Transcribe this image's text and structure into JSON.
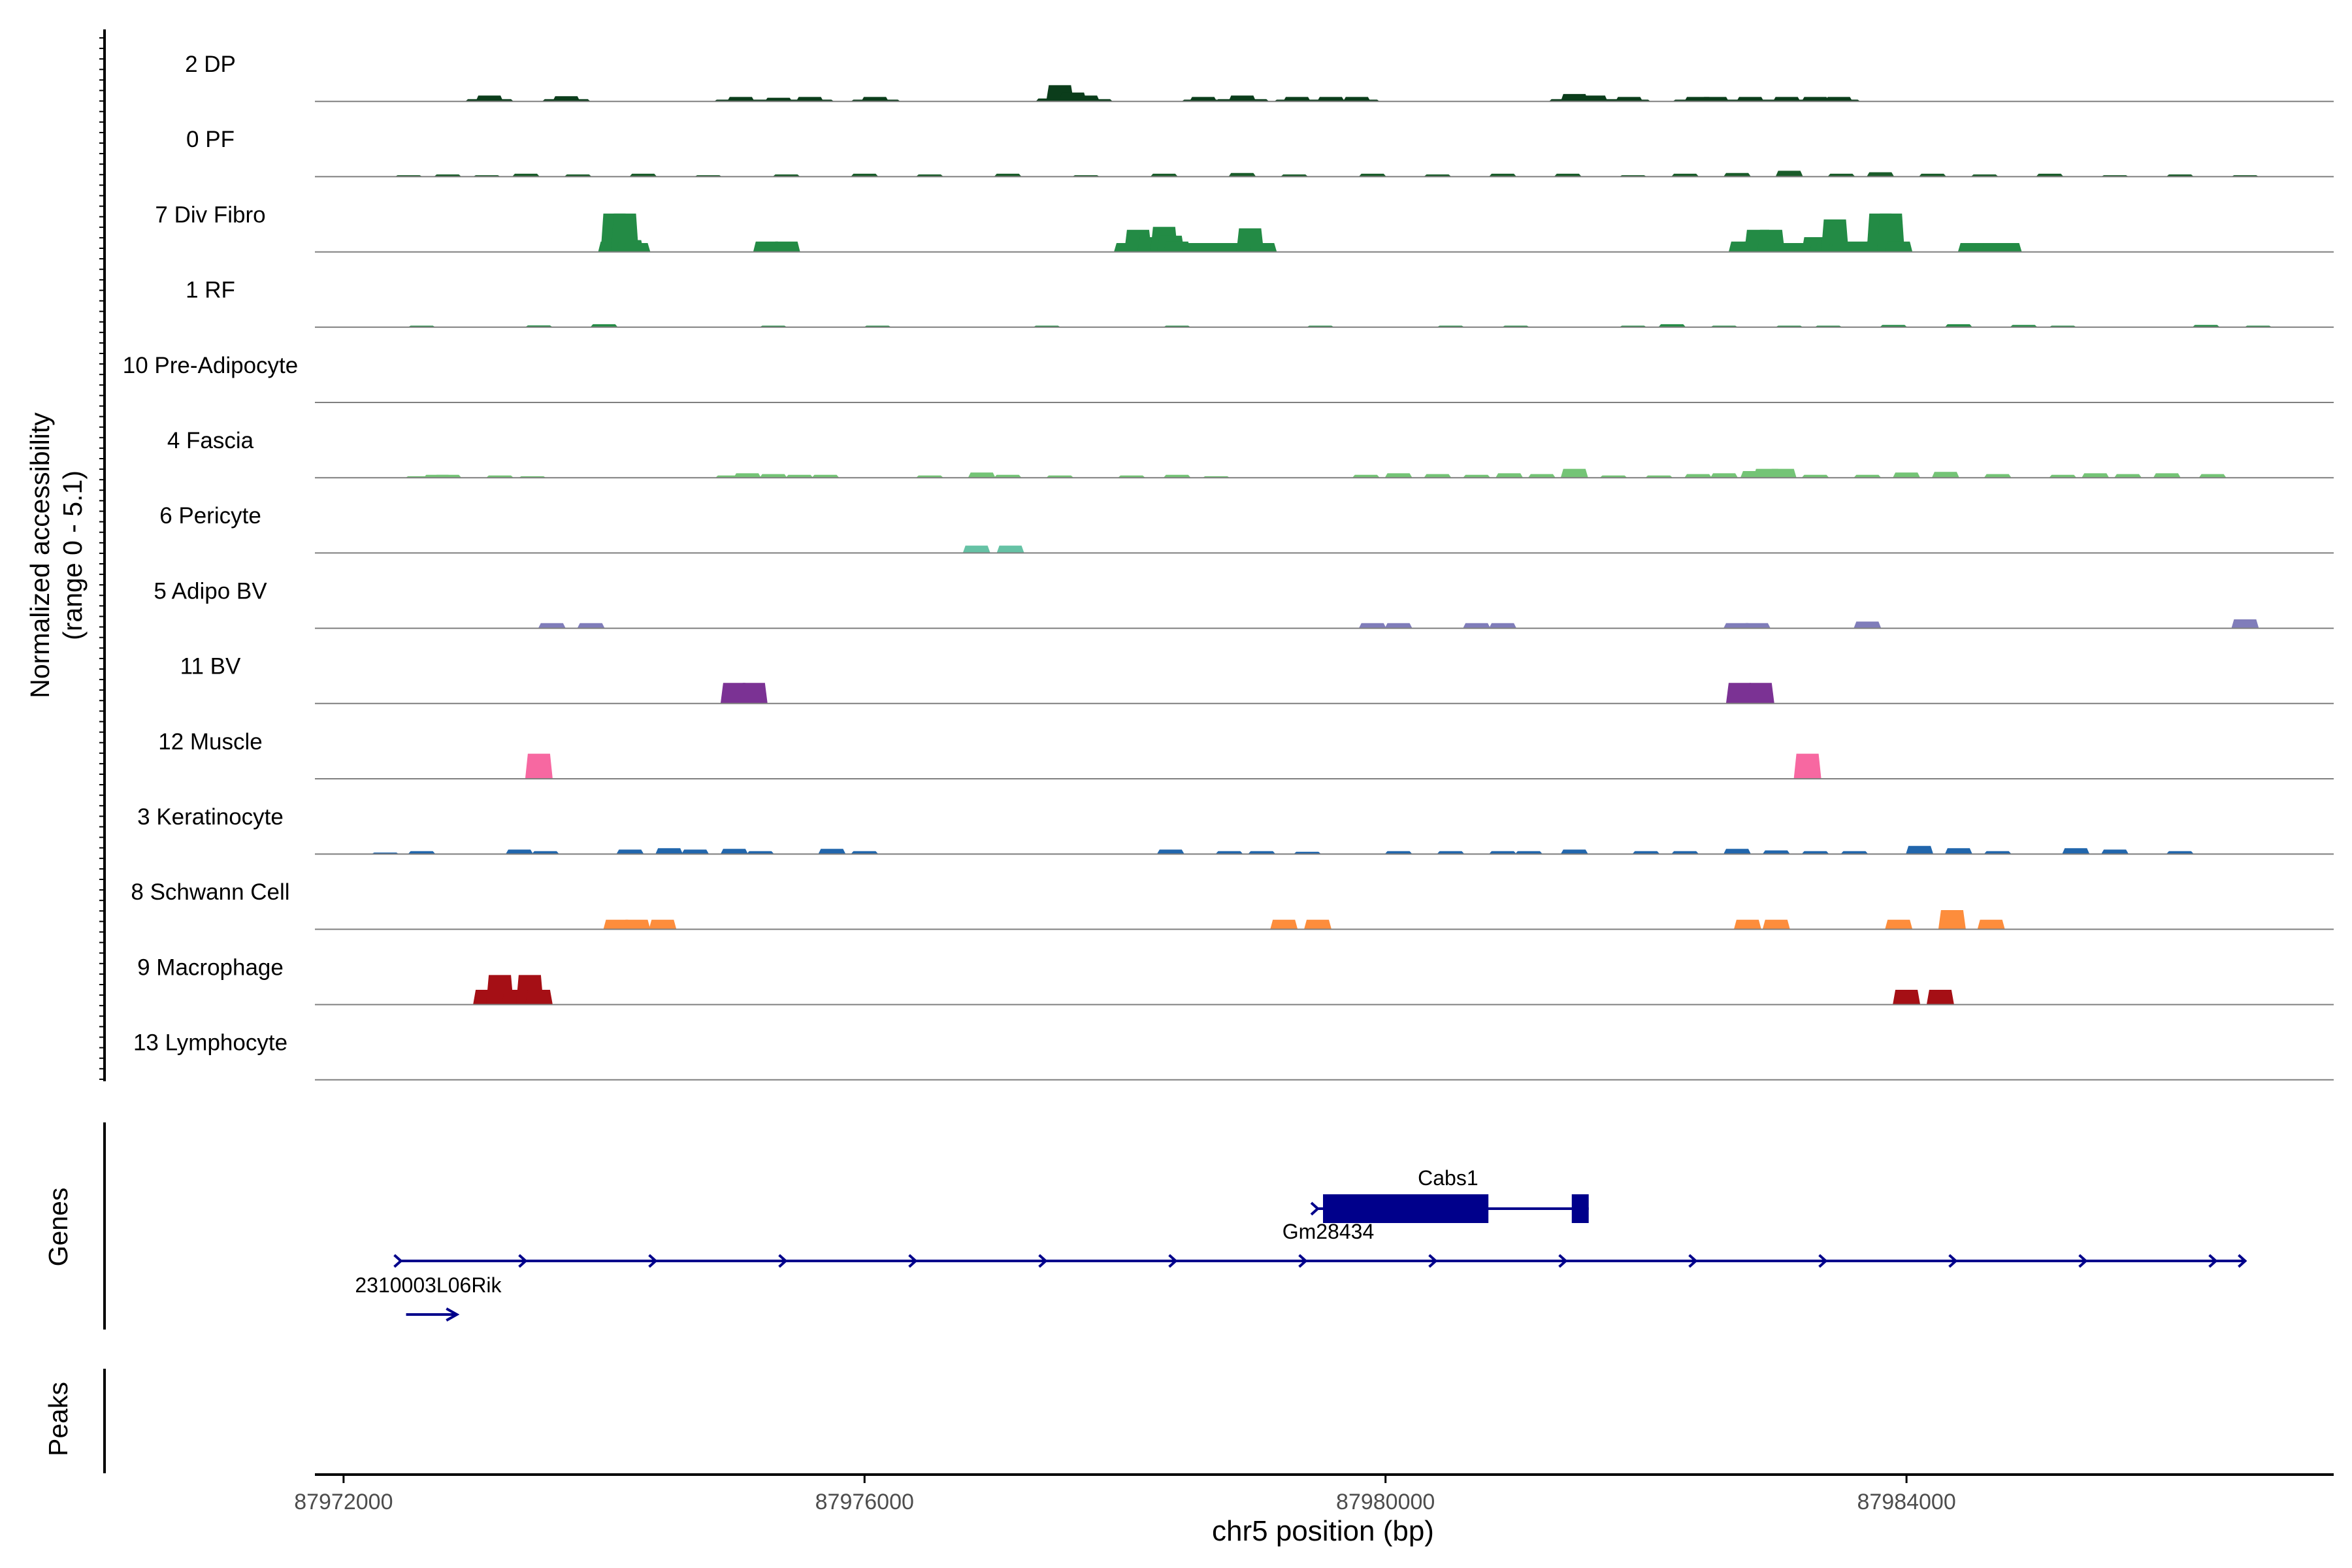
{
  "chart_data": {
    "type": "area",
    "title": "",
    "xlabel": "chr5 position (bp)",
    "ylabel": "Normalized accessibility",
    "ylabel_range": "(range 0 - 5.1)",
    "ylim": [
      0,
      5.1
    ],
    "xlim": [
      87971780,
      87987280
    ],
    "x_ticks": [
      87972000,
      87976000,
      87980000,
      87984000
    ],
    "x_tick_labels": [
      "87972000",
      "87976000",
      "87980000",
      "87984000"
    ],
    "gene_track_label": "Genes",
    "peak_track_label": "Peaks",
    "series": [
      {
        "name": "2 DP",
        "color": "#0b3d1b",
        "points": [
          [
            87973040,
            0.15
          ],
          [
            87973120,
            0.4
          ],
          [
            87973200,
            0.15
          ],
          [
            87973630,
            0.15
          ],
          [
            87973710,
            0.35
          ],
          [
            87973790,
            0.15
          ],
          [
            87974950,
            0.12
          ],
          [
            87975050,
            0.3
          ],
          [
            87975150,
            0.12
          ],
          [
            87975290,
            0.12
          ],
          [
            87975340,
            0.25
          ],
          [
            87975400,
            0.12
          ],
          [
            87975510,
            0.12
          ],
          [
            87975580,
            0.3
          ],
          [
            87975660,
            0.12
          ],
          [
            87976000,
            0.12
          ],
          [
            87976080,
            0.3
          ],
          [
            87976170,
            0.12
          ],
          [
            87977420,
            0.2
          ],
          [
            87977500,
            1.1
          ],
          [
            87977600,
            0.6
          ],
          [
            87977700,
            0.4
          ],
          [
            87977800,
            0.15
          ],
          [
            87978540,
            0.12
          ],
          [
            87978600,
            0.3
          ],
          [
            87978660,
            0.12
          ],
          [
            87978800,
            0.15
          ],
          [
            87978900,
            0.4
          ],
          [
            87979000,
            0.15
          ],
          [
            87979250,
            0.12
          ],
          [
            87979320,
            0.3
          ],
          [
            87979400,
            0.12
          ],
          [
            87979530,
            0.12
          ],
          [
            87979580,
            0.3
          ],
          [
            87979650,
            0.12
          ],
          [
            87979730,
            0.12
          ],
          [
            87979780,
            0.3
          ],
          [
            87979850,
            0.12
          ],
          [
            87981360,
            0.15
          ],
          [
            87981450,
            0.5
          ],
          [
            87981600,
            0.4
          ],
          [
            87981720,
            0.15
          ],
          [
            87981820,
            0.12
          ],
          [
            87981870,
            0.3
          ],
          [
            87981930,
            0.12
          ],
          [
            87982310,
            0.12
          ],
          [
            87982400,
            0.3
          ],
          [
            87982530,
            0.3
          ],
          [
            87982620,
            0.12
          ],
          [
            87982700,
            0.12
          ],
          [
            87982800,
            0.3
          ],
          [
            87982900,
            0.12
          ],
          [
            87983020,
            0.12
          ],
          [
            87983080,
            0.3
          ],
          [
            87983140,
            0.12
          ],
          [
            87983240,
            0.12
          ],
          [
            87983300,
            0.3
          ],
          [
            87983360,
            0.12
          ],
          [
            87983420,
            0.12
          ],
          [
            87983480,
            0.3
          ],
          [
            87983540,
            0.12
          ]
        ]
      },
      {
        "name": "0 PF",
        "color": "#1a5c2a",
        "points": [
          [
            87972500,
            0.1
          ],
          [
            87972800,
            0.15
          ],
          [
            87973100,
            0.1
          ],
          [
            87973400,
            0.2
          ],
          [
            87973800,
            0.15
          ],
          [
            87974300,
            0.2
          ],
          [
            87974800,
            0.1
          ],
          [
            87975400,
            0.15
          ],
          [
            87976000,
            0.2
          ],
          [
            87976500,
            0.15
          ],
          [
            87977100,
            0.2
          ],
          [
            87977700,
            0.1
          ],
          [
            87978300,
            0.2
          ],
          [
            87978900,
            0.25
          ],
          [
            87979300,
            0.15
          ],
          [
            87979900,
            0.2
          ],
          [
            87980400,
            0.15
          ],
          [
            87980900,
            0.2
          ],
          [
            87981400,
            0.2
          ],
          [
            87981900,
            0.1
          ],
          [
            87982300,
            0.2
          ],
          [
            87982700,
            0.25
          ],
          [
            87983100,
            0.4
          ],
          [
            87983500,
            0.2
          ],
          [
            87983800,
            0.3
          ],
          [
            87984200,
            0.2
          ],
          [
            87984600,
            0.15
          ],
          [
            87985100,
            0.2
          ],
          [
            87985600,
            0.1
          ],
          [
            87986100,
            0.15
          ],
          [
            87986600,
            0.1
          ]
        ]
      },
      {
        "name": "7 Div Fibro",
        "color": "#238b45",
        "points": [
          [
            87974060,
            0.7
          ],
          [
            87974080,
            2.6
          ],
          [
            87974160,
            2.6
          ],
          [
            87974200,
            0.8
          ],
          [
            87974250,
            0.6
          ],
          [
            87975250,
            0.7
          ],
          [
            87975400,
            0.7
          ],
          [
            87978020,
            0.6
          ],
          [
            87978100,
            1.5
          ],
          [
            87978200,
            1.0
          ],
          [
            87978300,
            1.7
          ],
          [
            87978350,
            1.1
          ],
          [
            87978400,
            0.7
          ],
          [
            87978540,
            0.6
          ],
          [
            87978600,
            0.6
          ],
          [
            87978720,
            0.6
          ],
          [
            87978800,
            0.6
          ],
          [
            87978920,
            0.6
          ],
          [
            87978960,
            1.6
          ],
          [
            87979060,
            0.6
          ],
          [
            87982740,
            0.7
          ],
          [
            87982840,
            0.7
          ],
          [
            87982860,
            1.5
          ],
          [
            87982960,
            1.5
          ],
          [
            87983080,
            0.6
          ],
          [
            87983180,
            0.6
          ],
          [
            87983240,
            0.6
          ],
          [
            87983300,
            1.0
          ],
          [
            87983360,
            0.6
          ],
          [
            87983400,
            0.6
          ],
          [
            87983450,
            2.2
          ],
          [
            87983500,
            0.6
          ],
          [
            87983520,
            0.6
          ],
          [
            87983620,
            0.7
          ],
          [
            87983780,
            0.7
          ],
          [
            87983800,
            2.6
          ],
          [
            87983880,
            2.6
          ],
          [
            87983940,
            0.7
          ],
          [
            87984500,
            0.6
          ],
          [
            87984620,
            0.6
          ],
          [
            87984680,
            0.6
          ],
          [
            87984780,
            0.6
          ]
        ]
      },
      {
        "name": "1 RF",
        "color": "#238b45",
        "points": [
          [
            87972600,
            0.1
          ],
          [
            87973500,
            0.12
          ],
          [
            87974000,
            0.2
          ],
          [
            87975300,
            0.1
          ],
          [
            87976100,
            0.1
          ],
          [
            87977400,
            0.1
          ],
          [
            87978400,
            0.1
          ],
          [
            87979500,
            0.1
          ],
          [
            87980500,
            0.1
          ],
          [
            87981000,
            0.1
          ],
          [
            87981900,
            0.1
          ],
          [
            87982200,
            0.2
          ],
          [
            87982600,
            0.1
          ],
          [
            87983100,
            0.1
          ],
          [
            87983400,
            0.1
          ],
          [
            87983900,
            0.15
          ],
          [
            87984400,
            0.2
          ],
          [
            87984900,
            0.15
          ],
          [
            87985200,
            0.1
          ],
          [
            87986300,
            0.15
          ],
          [
            87986700,
            0.1
          ]
        ]
      },
      {
        "name": "10 Pre-Adipocyte",
        "color": "#41ab5d",
        "points": []
      },
      {
        "name": "4 Fascia",
        "color": "#74c476",
        "points": [
          [
            87972580,
            0.1
          ],
          [
            87972720,
            0.2
          ],
          [
            87972800,
            0.2
          ],
          [
            87973200,
            0.15
          ],
          [
            87973450,
            0.1
          ],
          [
            87974960,
            0.15
          ],
          [
            87975100,
            0.3
          ],
          [
            87975300,
            0.25
          ],
          [
            87975500,
            0.2
          ],
          [
            87975700,
            0.2
          ],
          [
            87976500,
            0.15
          ],
          [
            87976900,
            0.35
          ],
          [
            87977100,
            0.2
          ],
          [
            87977500,
            0.15
          ],
          [
            87978050,
            0.15
          ],
          [
            87978400,
            0.2
          ],
          [
            87978700,
            0.1
          ],
          [
            87979850,
            0.2
          ],
          [
            87980100,
            0.3
          ],
          [
            87980400,
            0.25
          ],
          [
            87980700,
            0.2
          ],
          [
            87980950,
            0.3
          ],
          [
            87981200,
            0.25
          ],
          [
            87981450,
            0.6
          ],
          [
            87981750,
            0.15
          ],
          [
            87982100,
            0.15
          ],
          [
            87982400,
            0.25
          ],
          [
            87982600,
            0.3
          ],
          [
            87982830,
            0.45
          ],
          [
            87982930,
            0.6
          ],
          [
            87983050,
            0.6
          ],
          [
            87983300,
            0.2
          ],
          [
            87983700,
            0.2
          ],
          [
            87984000,
            0.35
          ],
          [
            87984300,
            0.4
          ],
          [
            87984700,
            0.25
          ],
          [
            87985200,
            0.2
          ],
          [
            87985450,
            0.3
          ],
          [
            87985700,
            0.25
          ],
          [
            87986000,
            0.3
          ],
          [
            87986350,
            0.25
          ]
        ]
      },
      {
        "name": "6 Pericyte",
        "color": "#66c2a5",
        "points": [
          [
            87976860,
            0.5
          ],
          [
            87977120,
            0.5
          ]
        ]
      },
      {
        "name": "5 Adipo BV",
        "color": "#807dba",
        "points": [
          [
            87973600,
            0.35
          ],
          [
            87973900,
            0.35
          ],
          [
            87979900,
            0.35
          ],
          [
            87980100,
            0.35
          ],
          [
            87980700,
            0.35
          ],
          [
            87980900,
            0.35
          ],
          [
            87982700,
            0.35
          ],
          [
            87982850,
            0.35
          ],
          [
            87983700,
            0.45
          ],
          [
            87986600,
            0.6
          ]
        ]
      },
      {
        "name": "11 BV",
        "color": "#7b3294",
        "points": [
          [
            87975000,
            1.4
          ],
          [
            87975150,
            1.4
          ],
          [
            87982720,
            1.4
          ],
          [
            87982880,
            1.4
          ]
        ]
      },
      {
        "name": "12 Muscle",
        "color": "#f768a1",
        "points": [
          [
            87973500,
            1.7
          ],
          [
            87983240,
            1.7
          ]
        ]
      },
      {
        "name": "3 Keratinocyte",
        "color": "#2166ac",
        "points": [
          [
            87972320,
            0.1
          ],
          [
            87972600,
            0.2
          ],
          [
            87973350,
            0.3
          ],
          [
            87973550,
            0.2
          ],
          [
            87974200,
            0.3
          ],
          [
            87974500,
            0.4
          ],
          [
            87974700,
            0.3
          ],
          [
            87975000,
            0.35
          ],
          [
            87975200,
            0.2
          ],
          [
            87975750,
            0.35
          ],
          [
            87976000,
            0.2
          ],
          [
            87978350,
            0.3
          ],
          [
            87978800,
            0.2
          ],
          [
            87979050,
            0.2
          ],
          [
            87979400,
            0.15
          ],
          [
            87980100,
            0.2
          ],
          [
            87980500,
            0.2
          ],
          [
            87980900,
            0.2
          ],
          [
            87981100,
            0.2
          ],
          [
            87981450,
            0.3
          ],
          [
            87982000,
            0.2
          ],
          [
            87982300,
            0.2
          ],
          [
            87982700,
            0.35
          ],
          [
            87983000,
            0.25
          ],
          [
            87983300,
            0.2
          ],
          [
            87983600,
            0.2
          ],
          [
            87984100,
            0.55
          ],
          [
            87984400,
            0.4
          ],
          [
            87984700,
            0.2
          ],
          [
            87985300,
            0.4
          ],
          [
            87985600,
            0.3
          ],
          [
            87986100,
            0.2
          ]
        ]
      },
      {
        "name": "8 Schwann Cell",
        "color": "#fd8d3c",
        "points": [
          [
            87974100,
            0.65
          ],
          [
            87974250,
            0.65
          ],
          [
            87974450,
            0.65
          ],
          [
            87979220,
            0.65
          ],
          [
            87979480,
            0.65
          ],
          [
            87982780,
            0.65
          ],
          [
            87983000,
            0.65
          ],
          [
            87983940,
            0.65
          ],
          [
            87984350,
            1.3
          ],
          [
            87984650,
            0.65
          ]
        ]
      },
      {
        "name": "9 Macrophage",
        "color": "#a50f15",
        "points": [
          [
            87973100,
            1.0
          ],
          [
            87973200,
            2.0
          ],
          [
            87973320,
            1.0
          ],
          [
            87973430,
            2.0
          ],
          [
            87973500,
            1.0
          ],
          [
            87984000,
            1.0
          ],
          [
            87984260,
            1.0
          ]
        ]
      },
      {
        "name": "13 Lymphocyte",
        "color": "#000000",
        "points": []
      }
    ],
    "genes": [
      {
        "name": "Cabs1",
        "start": 87979480,
        "end": 87981560,
        "exons": [
          [
            87979520,
            87980790
          ],
          [
            87981430,
            87981560
          ]
        ],
        "strand": "+",
        "label_pos": 87980480
      },
      {
        "name": "Gm28434",
        "start": 87972440,
        "end": 87986600,
        "exons": [],
        "strand": "+",
        "label_pos": 87979560
      },
      {
        "name": "2310003L06Rik",
        "start": 87972480,
        "end": 87972870,
        "exons": [],
        "strand": "+",
        "label_pos": 87972650
      }
    ]
  }
}
